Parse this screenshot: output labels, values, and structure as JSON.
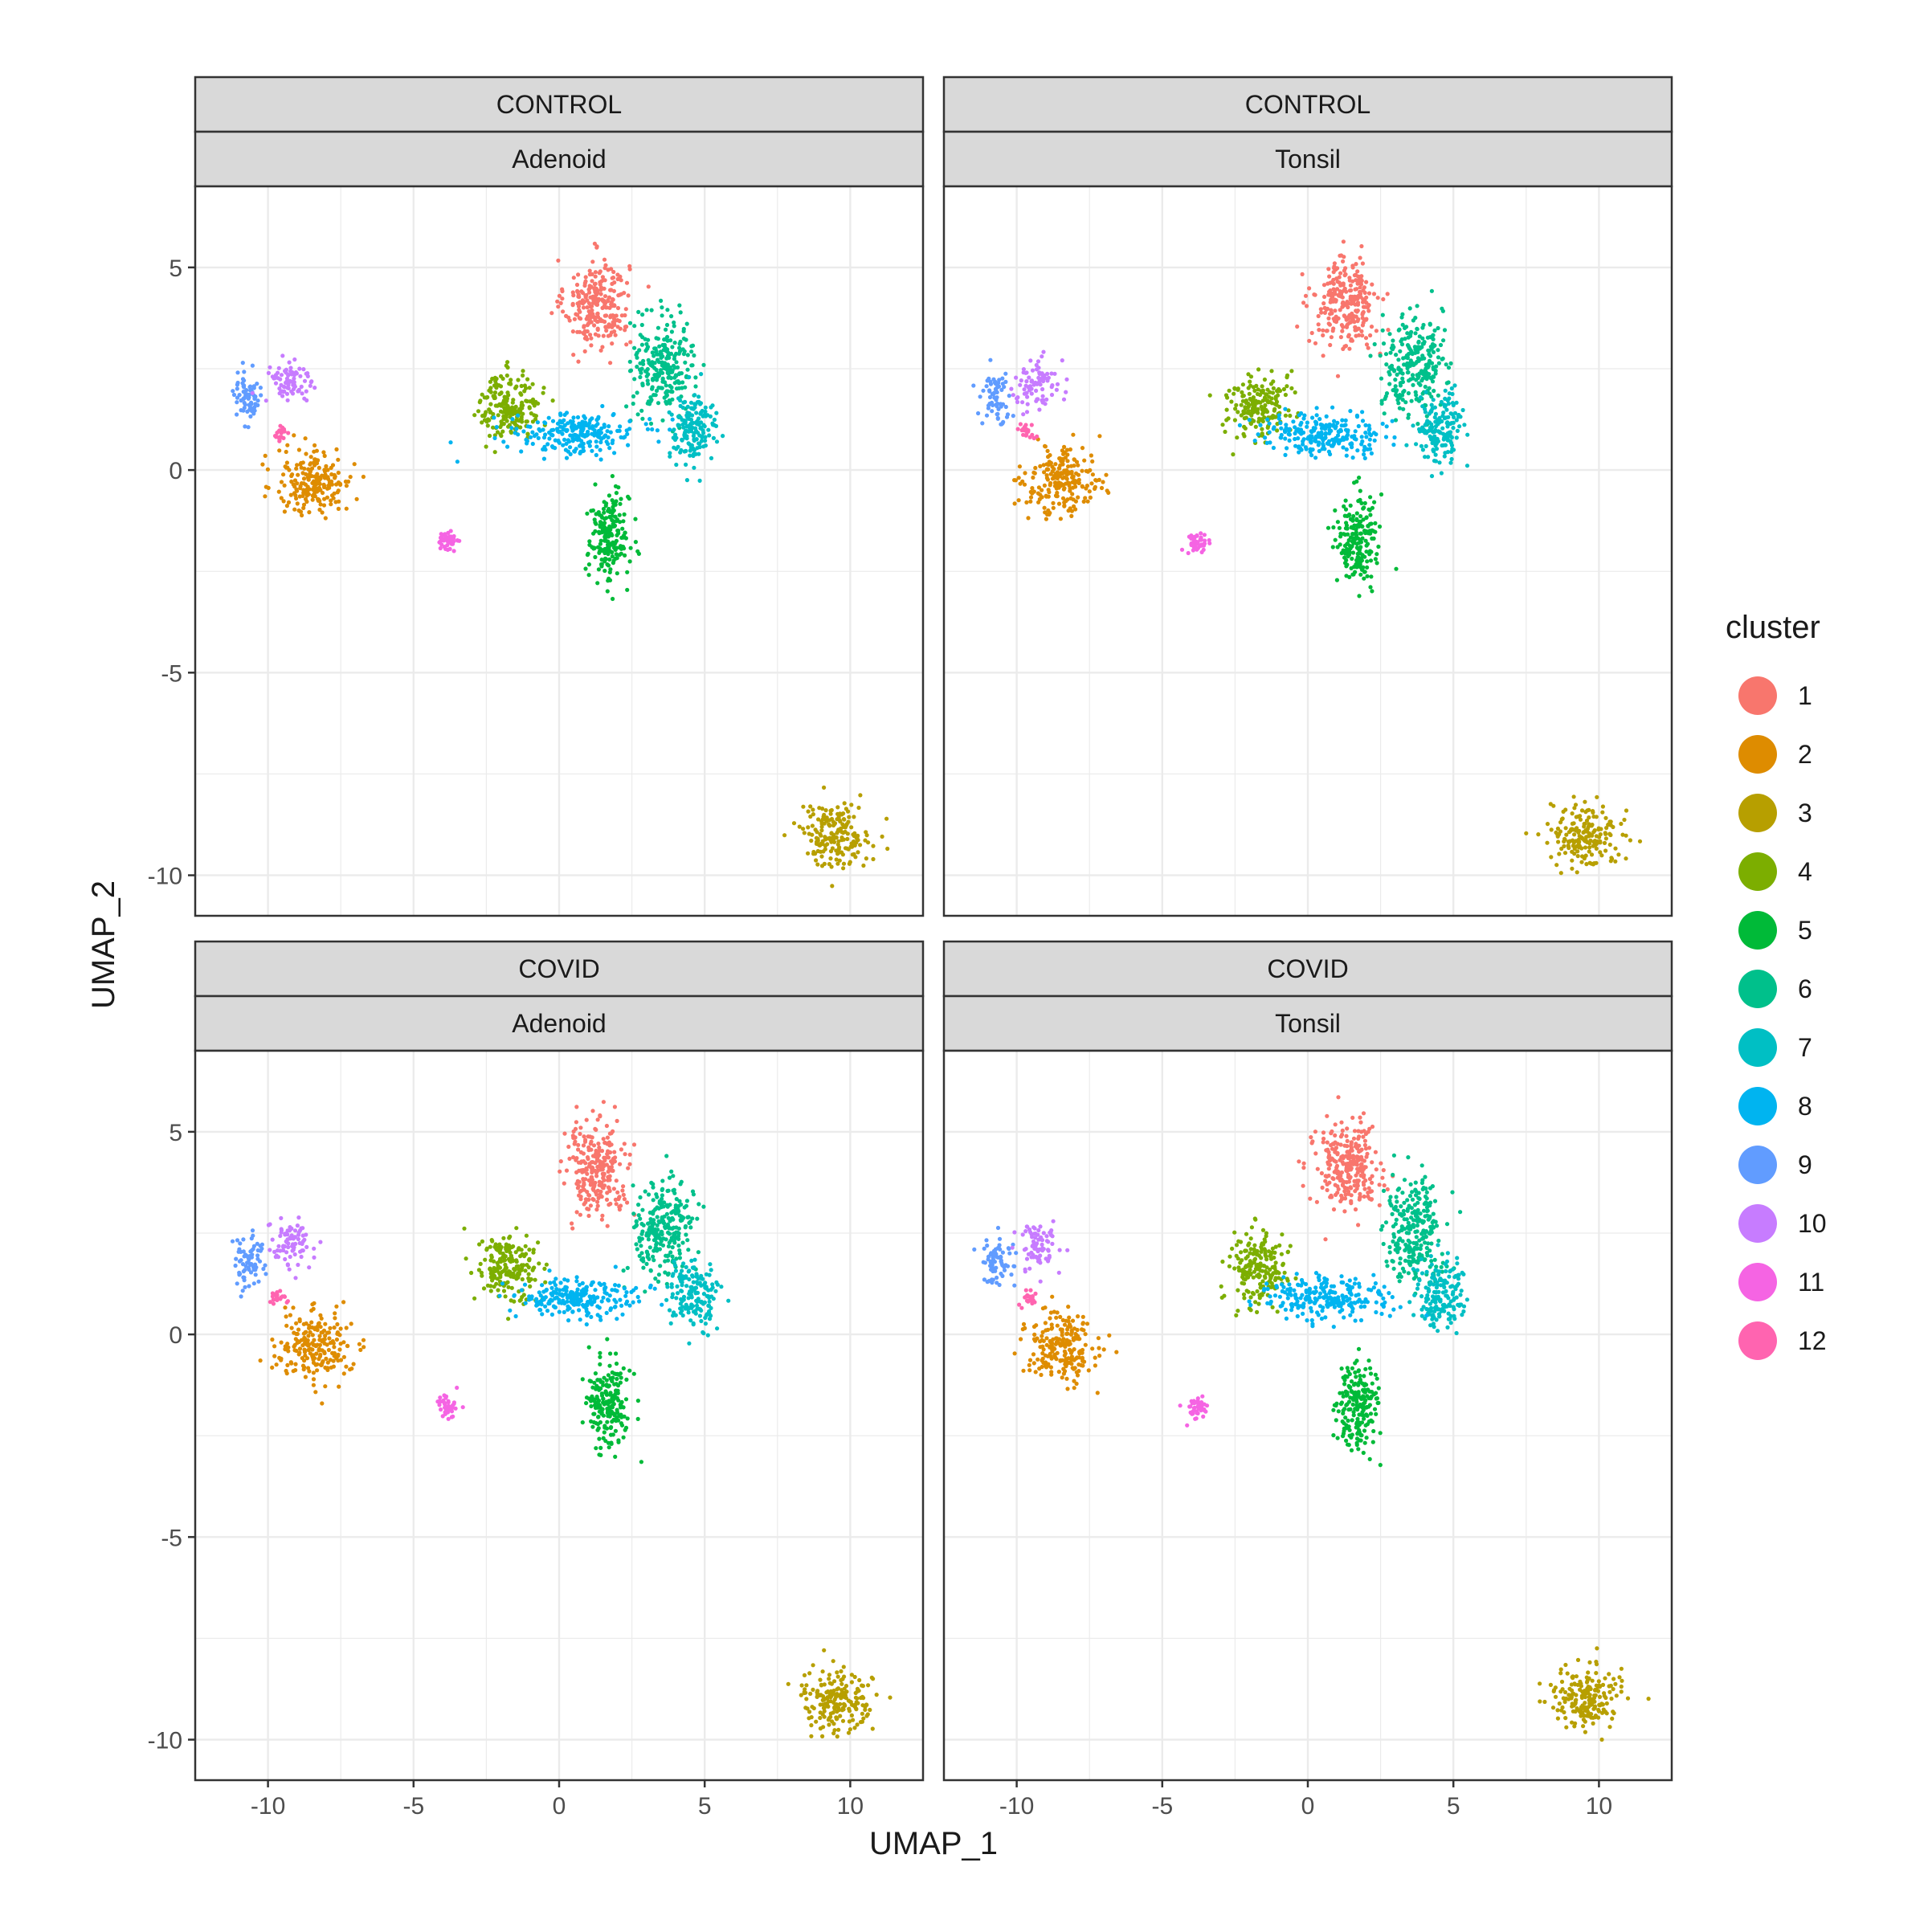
{
  "chart_data": {
    "type": "scatter",
    "xlabel": "UMAP_1",
    "ylabel": "UMAP_2",
    "xlim": [
      -12.5,
      12.5
    ],
    "ylim": [
      -11.0,
      7.0
    ],
    "x_ticks": [
      -10,
      -5,
      0,
      5,
      10
    ],
    "y_ticks": [
      -10,
      -5,
      0,
      5
    ],
    "x_tick_labels": [
      "-10",
      "-5",
      "0",
      "5",
      "10"
    ],
    "y_tick_labels": [
      "-10",
      "-5",
      "0",
      "5"
    ],
    "grid": true,
    "legend": {
      "title": "cluster",
      "placement": "right",
      "entries": [
        "1",
        "2",
        "3",
        "4",
        "5",
        "6",
        "7",
        "8",
        "9",
        "10",
        "11",
        "12"
      ]
    },
    "colors": {
      "1": "#F8766D",
      "2": "#DE8C00",
      "3": "#B79F00",
      "4": "#7CAE00",
      "5": "#00BA38",
      "6": "#00C08B",
      "7": "#00BFC4",
      "8": "#00B4F0",
      "9": "#619CFF",
      "10": "#C77CFF",
      "11": "#F564E3",
      "12": "#FF64B0"
    },
    "panels": [
      {
        "row_strip": "CONTROL",
        "col_strip": "Adenoid"
      },
      {
        "row_strip": "CONTROL",
        "col_strip": "Tonsil"
      },
      {
        "row_strip": "COVID",
        "col_strip": "Adenoid"
      },
      {
        "row_strip": "COVID",
        "col_strip": "Tonsil"
      }
    ],
    "clusters": [
      {
        "cluster": "1",
        "center": [
          1.3,
          4.1
        ],
        "spread": [
          1.0,
          1.0
        ]
      },
      {
        "cluster": "2",
        "center": [
          -8.4,
          -0.3
        ],
        "spread": [
          1.2,
          0.75
        ]
      },
      {
        "cluster": "3",
        "center": [
          9.5,
          -9.0
        ],
        "spread": [
          1.1,
          0.7
        ]
      },
      {
        "cluster": "4",
        "center": [
          -1.7,
          1.6
        ],
        "spread": [
          0.95,
          0.75
        ]
      },
      {
        "cluster": "5",
        "center": [
          1.7,
          -1.7
        ],
        "spread": [
          0.65,
          1.0
        ]
      },
      {
        "cluster": "6",
        "center": [
          3.6,
          2.6
        ],
        "spread": [
          0.95,
          1.1
        ]
      },
      {
        "cluster": "7",
        "center": [
          4.6,
          1.0
        ],
        "spread": [
          0.75,
          0.75
        ]
      },
      {
        "cluster": "8",
        "center": [
          0.6,
          0.9
        ],
        "spread": [
          1.9,
          0.45
        ]
      },
      {
        "cluster": "9",
        "center": [
          -10.7,
          1.8
        ],
        "spread": [
          0.5,
          0.6
        ]
      },
      {
        "cluster": "10",
        "center": [
          -9.3,
          2.2
        ],
        "spread": [
          0.7,
          0.55
        ]
      },
      {
        "cluster": "11",
        "center": [
          -3.8,
          -1.8
        ],
        "spread": [
          0.35,
          0.25
        ]
      },
      {
        "cluster": "12",
        "center": [
          -9.6,
          0.9
        ],
        "spread": [
          0.3,
          0.2
        ]
      }
    ]
  }
}
